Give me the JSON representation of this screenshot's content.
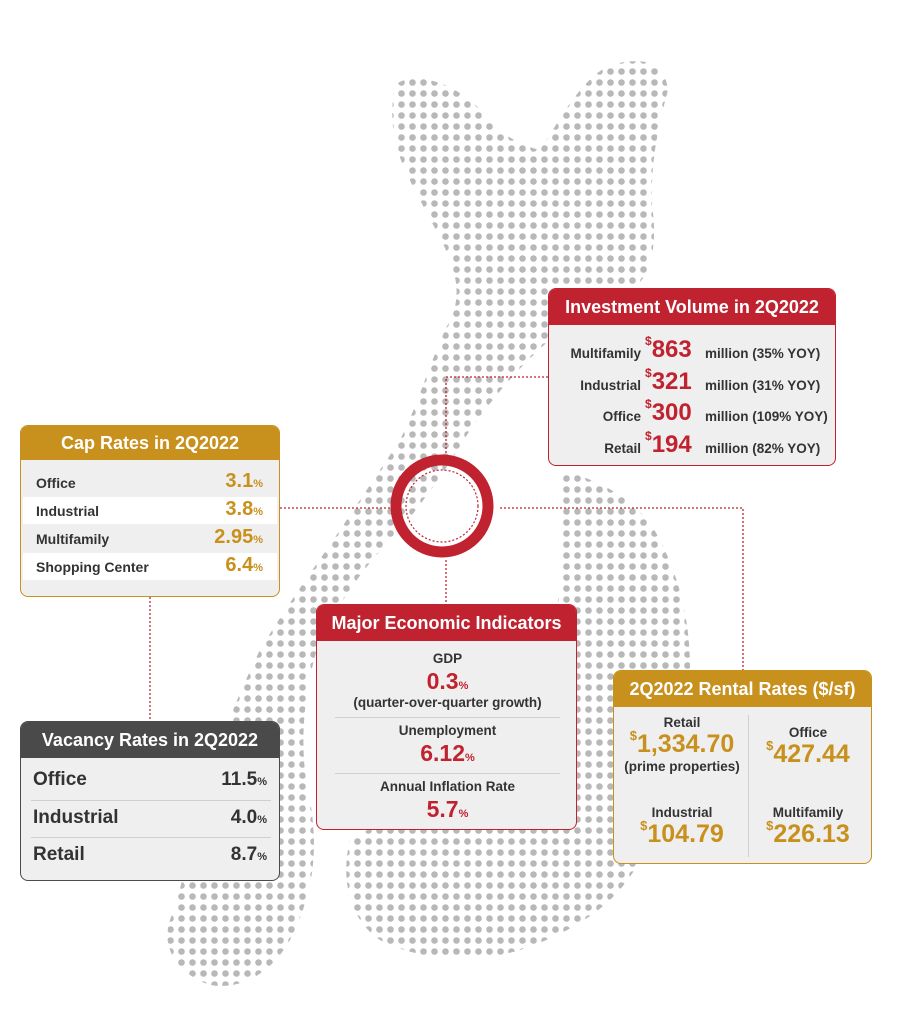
{
  "colors": {
    "red": "#c0222f",
    "gold": "#c8901c",
    "dark": "#4a4a4a",
    "dot": "#b5b5b5"
  },
  "investment": {
    "title": "Investment Volume in 2Q2022",
    "rows": [
      {
        "category": "Multifamily",
        "currency": "$",
        "amount": "863",
        "tail": "million (35% YOY)"
      },
      {
        "category": "Industrial",
        "currency": "$",
        "amount": "321",
        "tail": "million (31% YOY)"
      },
      {
        "category": "Office",
        "currency": "$",
        "amount": "300",
        "tail": "million (109% YOY)"
      },
      {
        "category": "Retail",
        "currency": "$",
        "amount": "194",
        "tail": "million (82% YOY)"
      }
    ]
  },
  "cap_rates": {
    "title": "Cap Rates in 2Q2022",
    "rows": [
      {
        "label": "Office",
        "value": "3.1",
        "unit": "%"
      },
      {
        "label": "Industrial",
        "value": "3.8",
        "unit": "%"
      },
      {
        "label": "Multifamily",
        "value": "2.95",
        "unit": "%"
      },
      {
        "label": "Shopping Center",
        "value": "6.4",
        "unit": "%"
      }
    ]
  },
  "vacancy": {
    "title": "Vacancy Rates in 2Q2022",
    "rows": [
      {
        "label": "Office",
        "value": "11.5",
        "unit": "%"
      },
      {
        "label": "Industrial",
        "value": "4.0",
        "unit": "%"
      },
      {
        "label": "Retail",
        "value": "8.7",
        "unit": "%"
      }
    ]
  },
  "economic": {
    "title": "Major Economic Indicators",
    "gdp_label": "GDP",
    "gdp_value": "0.3",
    "gdp_unit": "%",
    "gdp_note": "(quarter-over-quarter growth)",
    "unemp_label": "Unemployment",
    "unemp_value": "6.12",
    "unemp_unit": "%",
    "infl_label": "Annual Inflation Rate",
    "infl_value": "5.7",
    "infl_unit": "%"
  },
  "rental": {
    "title": "2Q2022 Rental Rates ($/sf)",
    "retail_label": "Retail",
    "retail_currency": "$",
    "retail_value": "1,334.70",
    "retail_note": "(prime properties)",
    "office_label": "Office",
    "office_currency": "$",
    "office_value": "427.44",
    "industrial_label": "Industrial",
    "industrial_currency": "$",
    "industrial_value": "104.79",
    "multifamily_label": "Multifamily",
    "multifamily_currency": "$",
    "multifamily_value": "226.13"
  }
}
